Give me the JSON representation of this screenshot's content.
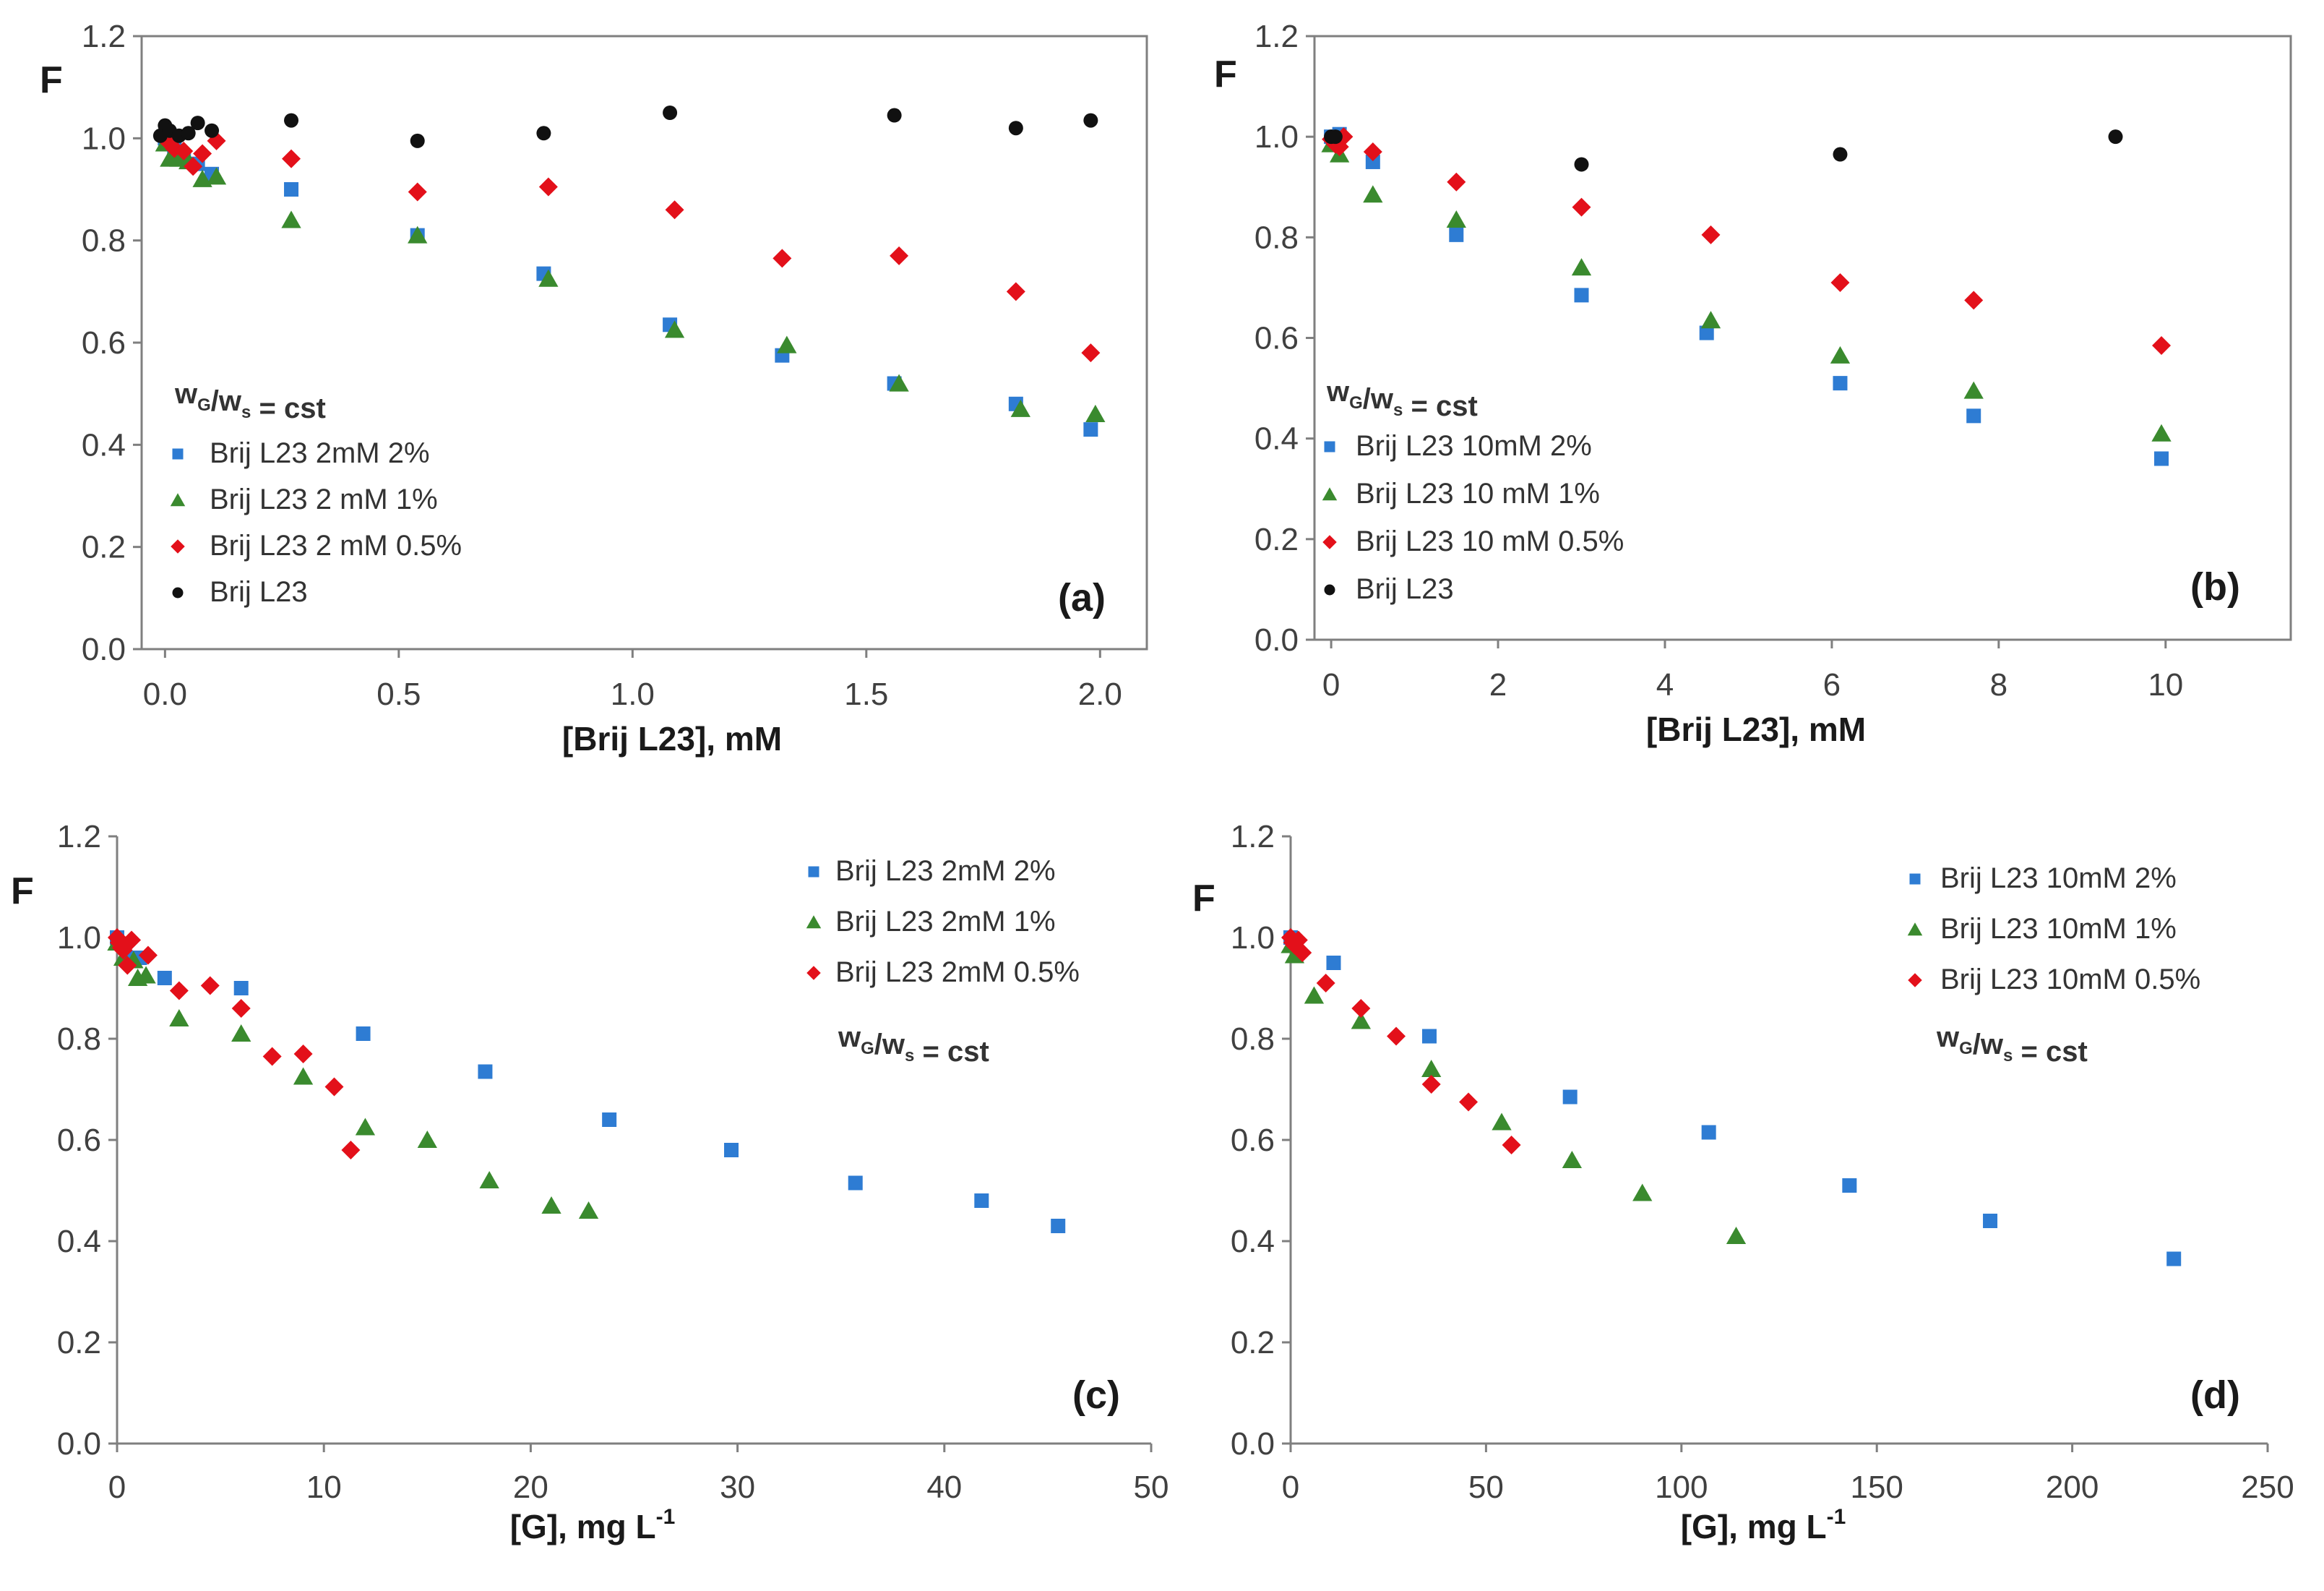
{
  "chart_data": [
    {
      "type": "scatter",
      "panel_label": "(a)",
      "ylabel": "F",
      "xlabel": "[Brij L23], mM",
      "xlim": [
        -0.05,
        2.1
      ],
      "ylim": [
        0,
        1.2
      ],
      "xticks": [
        "0.0",
        "0.5",
        "1.0",
        "1.5",
        "2.0"
      ],
      "yticks": [
        "0.0",
        "0.2",
        "0.4",
        "0.6",
        "0.8",
        "1.0",
        "1.2"
      ],
      "frame": true,
      "legend_title": {
        "w": "w",
        "g": "G",
        "slash": "/w",
        "s": "s",
        "value": "=  cst"
      },
      "series": [
        {
          "name": "Brij L23 2mM 2%",
          "marker": "square",
          "color": "#2E7CD3",
          "x": [
            0.0,
            0.02,
            0.04,
            0.07,
            0.1,
            0.27,
            0.54,
            0.81,
            1.08,
            1.32,
            1.56,
            1.82,
            1.98
          ],
          "y": [
            1.0,
            0.98,
            0.96,
            0.95,
            0.93,
            0.9,
            0.81,
            0.735,
            0.635,
            0.575,
            0.52,
            0.48,
            0.43
          ]
        },
        {
          "name": "Brij L23 2 mM 1%",
          "marker": "triangle",
          "color": "#3A8A2E",
          "x": [
            0.0,
            0.01,
            0.03,
            0.05,
            0.08,
            0.11,
            0.27,
            0.54,
            0.82,
            1.09,
            1.33,
            1.57,
            1.83,
            1.99
          ],
          "y": [
            0.99,
            0.96,
            0.96,
            0.955,
            0.92,
            0.925,
            0.84,
            0.81,
            0.725,
            0.625,
            0.595,
            0.52,
            0.47,
            0.46
          ]
        },
        {
          "name": "Brij L23 2 mM 0.5%",
          "marker": "diamond",
          "color": "#E3101A",
          "x": [
            0.0,
            0.01,
            0.02,
            0.04,
            0.06,
            0.08,
            0.11,
            0.27,
            0.54,
            0.82,
            1.09,
            1.32,
            1.57,
            1.82,
            1.98
          ],
          "y": [
            1.0,
            0.99,
            0.98,
            0.975,
            0.945,
            0.97,
            0.995,
            0.96,
            0.895,
            0.905,
            0.86,
            0.765,
            0.77,
            0.7,
            0.58
          ]
        },
        {
          "name": "Brij L23",
          "marker": "circle",
          "color": "#111111",
          "x": [
            -0.01,
            0.0,
            0.01,
            0.03,
            0.05,
            0.07,
            0.1,
            0.27,
            0.54,
            0.81,
            1.08,
            1.56,
            1.82,
            1.98
          ],
          "y": [
            1.005,
            1.025,
            1.015,
            1.005,
            1.01,
            1.03,
            1.015,
            1.035,
            0.995,
            1.01,
            1.05,
            1.045,
            1.02,
            1.035
          ]
        }
      ]
    },
    {
      "type": "scatter",
      "panel_label": "(b)",
      "ylabel": "F",
      "xlabel": "[Brij L23], mM",
      "xlim": [
        -0.2,
        11.5
      ],
      "ylim": [
        0,
        1.2
      ],
      "xticks": [
        "0",
        "2",
        "4",
        "6",
        "8",
        "10"
      ],
      "yticks": [
        "0.0",
        "0.2",
        "0.4",
        "0.6",
        "0.8",
        "1.0",
        "1.2"
      ],
      "frame": true,
      "legend_title": {
        "w": "w",
        "g": "G",
        "slash": "/w",
        "s": "s",
        "value": "=  cst"
      },
      "series": [
        {
          "name": "Brij L23 10mM 2%",
          "marker": "square",
          "color": "#2E7CD3",
          "x": [
            0.0,
            0.1,
            0.5,
            1.5,
            3.0,
            4.5,
            6.1,
            7.7,
            9.95
          ],
          "y": [
            1.0,
            1.005,
            0.95,
            0.805,
            0.685,
            0.61,
            0.51,
            0.445,
            0.36
          ]
        },
        {
          "name": "Brij L23 10 mM 1%",
          "marker": "triangle",
          "color": "#3A8A2E",
          "x": [
            0.0,
            0.1,
            0.5,
            1.5,
            3.0,
            4.55,
            6.1,
            7.7,
            9.95
          ],
          "y": [
            0.985,
            0.965,
            0.885,
            0.835,
            0.74,
            0.635,
            0.565,
            0.495,
            0.41
          ]
        },
        {
          "name": "Brij L23 10 mM 0.5%",
          "marker": "diamond",
          "color": "#E3101A",
          "x": [
            0.0,
            0.05,
            0.1,
            0.15,
            0.5,
            1.5,
            3.0,
            4.55,
            6.1,
            7.7,
            9.95
          ],
          "y": [
            0.995,
            0.985,
            0.98,
            1.0,
            0.97,
            0.91,
            0.86,
            0.805,
            0.71,
            0.675,
            0.585
          ]
        },
        {
          "name": "Brij L23",
          "marker": "circle",
          "color": "#111111",
          "x": [
            0.0,
            0.05,
            3.0,
            6.1,
            9.4
          ],
          "y": [
            1.0,
            1.0,
            0.945,
            0.965,
            1.0
          ]
        }
      ]
    },
    {
      "type": "scatter",
      "panel_label": "(c)",
      "ylabel": "F",
      "xlabel": "[G], mg L",
      "xlabel_sup": "-1",
      "xlim": [
        0,
        50
      ],
      "ylim": [
        0,
        1.2
      ],
      "xticks": [
        "0",
        "10",
        "20",
        "30",
        "40",
        "50"
      ],
      "yticks": [
        "0.0",
        "0.2",
        "0.4",
        "0.6",
        "0.8",
        "1.0",
        "1.2"
      ],
      "frame": false,
      "legend_title": {
        "w": "w",
        "g": "G",
        "slash": "/w",
        "s": "s",
        "value": "=  cst"
      },
      "series": [
        {
          "name": "Brij L23 2mM 2%",
          "marker": "square",
          "color": "#2E7CD3",
          "x": [
            0.0,
            0.5,
            1.1,
            2.3,
            6.0,
            11.9,
            17.8,
            23.8,
            29.7,
            35.7,
            41.8,
            45.5
          ],
          "y": [
            1.0,
            0.96,
            0.96,
            0.92,
            0.9,
            0.81,
            0.735,
            0.64,
            0.58,
            0.515,
            0.48,
            0.43
          ]
        },
        {
          "name": "Brij L23 2mM 1%",
          "marker": "triangle",
          "color": "#3A8A2E",
          "x": [
            0.0,
            0.3,
            0.8,
            1.0,
            1.4,
            3.0,
            6.0,
            9.0,
            12.0,
            15.0,
            18.0,
            21.0,
            22.8
          ],
          "y": [
            0.99,
            0.96,
            0.955,
            0.92,
            0.925,
            0.84,
            0.81,
            0.725,
            0.625,
            0.6,
            0.52,
            0.47,
            0.46
          ]
        },
        {
          "name": "Brij L23 2mM 0.5%",
          "marker": "diamond",
          "color": "#E3101A",
          "x": [
            0.0,
            0.1,
            0.2,
            0.3,
            0.5,
            0.7,
            1.5,
            3.0,
            4.5,
            6.0,
            7.5,
            9.0,
            10.5,
            11.3
          ],
          "y": [
            1.0,
            0.99,
            0.98,
            0.975,
            0.945,
            0.995,
            0.965,
            0.895,
            0.905,
            0.86,
            0.765,
            0.77,
            0.705,
            0.58
          ]
        }
      ]
    },
    {
      "type": "scatter",
      "panel_label": "(d)",
      "ylabel": "F",
      "xlabel": "[G], mg L",
      "xlabel_sup": "-1",
      "xlim": [
        0,
        250
      ],
      "ylim": [
        0,
        1.2
      ],
      "xticks": [
        "0",
        "50",
        "100",
        "150",
        "200",
        "250"
      ],
      "yticks": [
        "0.0",
        "0.2",
        "0.4",
        "0.6",
        "0.8",
        "1.0",
        "1.2"
      ],
      "frame": false,
      "legend_title": {
        "w": "w",
        "g": "G",
        "slash": "/w",
        "s": "s",
        "value": "=  cst"
      },
      "series": [
        {
          "name": "Brij L23 10mM 2%",
          "marker": "square",
          "color": "#2E7CD3",
          "x": [
            0.0,
            11.0,
            35.5,
            71.5,
            107.0,
            143.0,
            179.0,
            226.0
          ],
          "y": [
            1.0,
            0.95,
            0.805,
            0.685,
            0.615,
            0.51,
            0.44,
            0.365
          ]
        },
        {
          "name": "Brij L23 10mM 1%",
          "marker": "triangle",
          "color": "#3A8A2E",
          "x": [
            0.0,
            1.0,
            6.0,
            18.0,
            36.0,
            54.0,
            72.0,
            90.0,
            114.0
          ],
          "y": [
            0.985,
            0.965,
            0.885,
            0.835,
            0.74,
            0.635,
            0.56,
            0.495,
            0.41
          ]
        },
        {
          "name": "Brij L23 10mM 0.5%",
          "marker": "diamond",
          "color": "#E3101A",
          "x": [
            0.0,
            0.5,
            1.0,
            2.0,
            3.0,
            9.0,
            18.0,
            27.0,
            36.0,
            45.5,
            56.5
          ],
          "y": [
            1.0,
            0.99,
            0.985,
            0.995,
            0.97,
            0.91,
            0.86,
            0.805,
            0.71,
            0.675,
            0.59
          ]
        }
      ]
    }
  ]
}
